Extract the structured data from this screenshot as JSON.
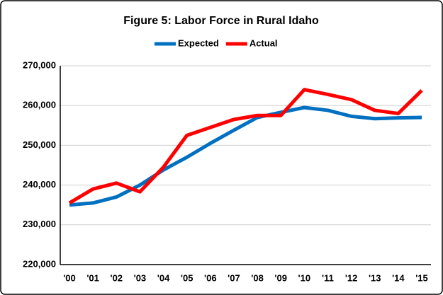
{
  "chart_data": {
    "type": "line",
    "title": "Figure 5: Labor Force in Rural Idaho",
    "categories": [
      "'00",
      "'01",
      "'02",
      "'03",
      "'04",
      "'05",
      "'06",
      "'07",
      "'08",
      "'09",
      "'10",
      "'11",
      "'12",
      "'13",
      "'14",
      "'15"
    ],
    "series": [
      {
        "name": "Expected",
        "color": "#0070c0",
        "values": [
          235000,
          235500,
          237000,
          240000,
          243800,
          247000,
          250500,
          253800,
          257000,
          258300,
          259500,
          258800,
          257300,
          256700,
          256900,
          257000
        ]
      },
      {
        "name": "Actual",
        "color": "#ff0000",
        "values": [
          235500,
          239000,
          240500,
          238300,
          244500,
          252500,
          254500,
          256500,
          257500,
          257500,
          264000,
          262800,
          261500,
          258800,
          258000,
          263800
        ]
      }
    ],
    "ylim": [
      220000,
      270000
    ],
    "yticks": [
      {
        "value": 220000,
        "label": "220,000"
      },
      {
        "value": 230000,
        "label": "230,000"
      },
      {
        "value": 240000,
        "label": "240,000"
      },
      {
        "value": 250000,
        "label": "250,000"
      },
      {
        "value": 260000,
        "label": "260,000"
      },
      {
        "value": 270000,
        "label": "270,000"
      }
    ],
    "grid": true,
    "legend": "top"
  }
}
